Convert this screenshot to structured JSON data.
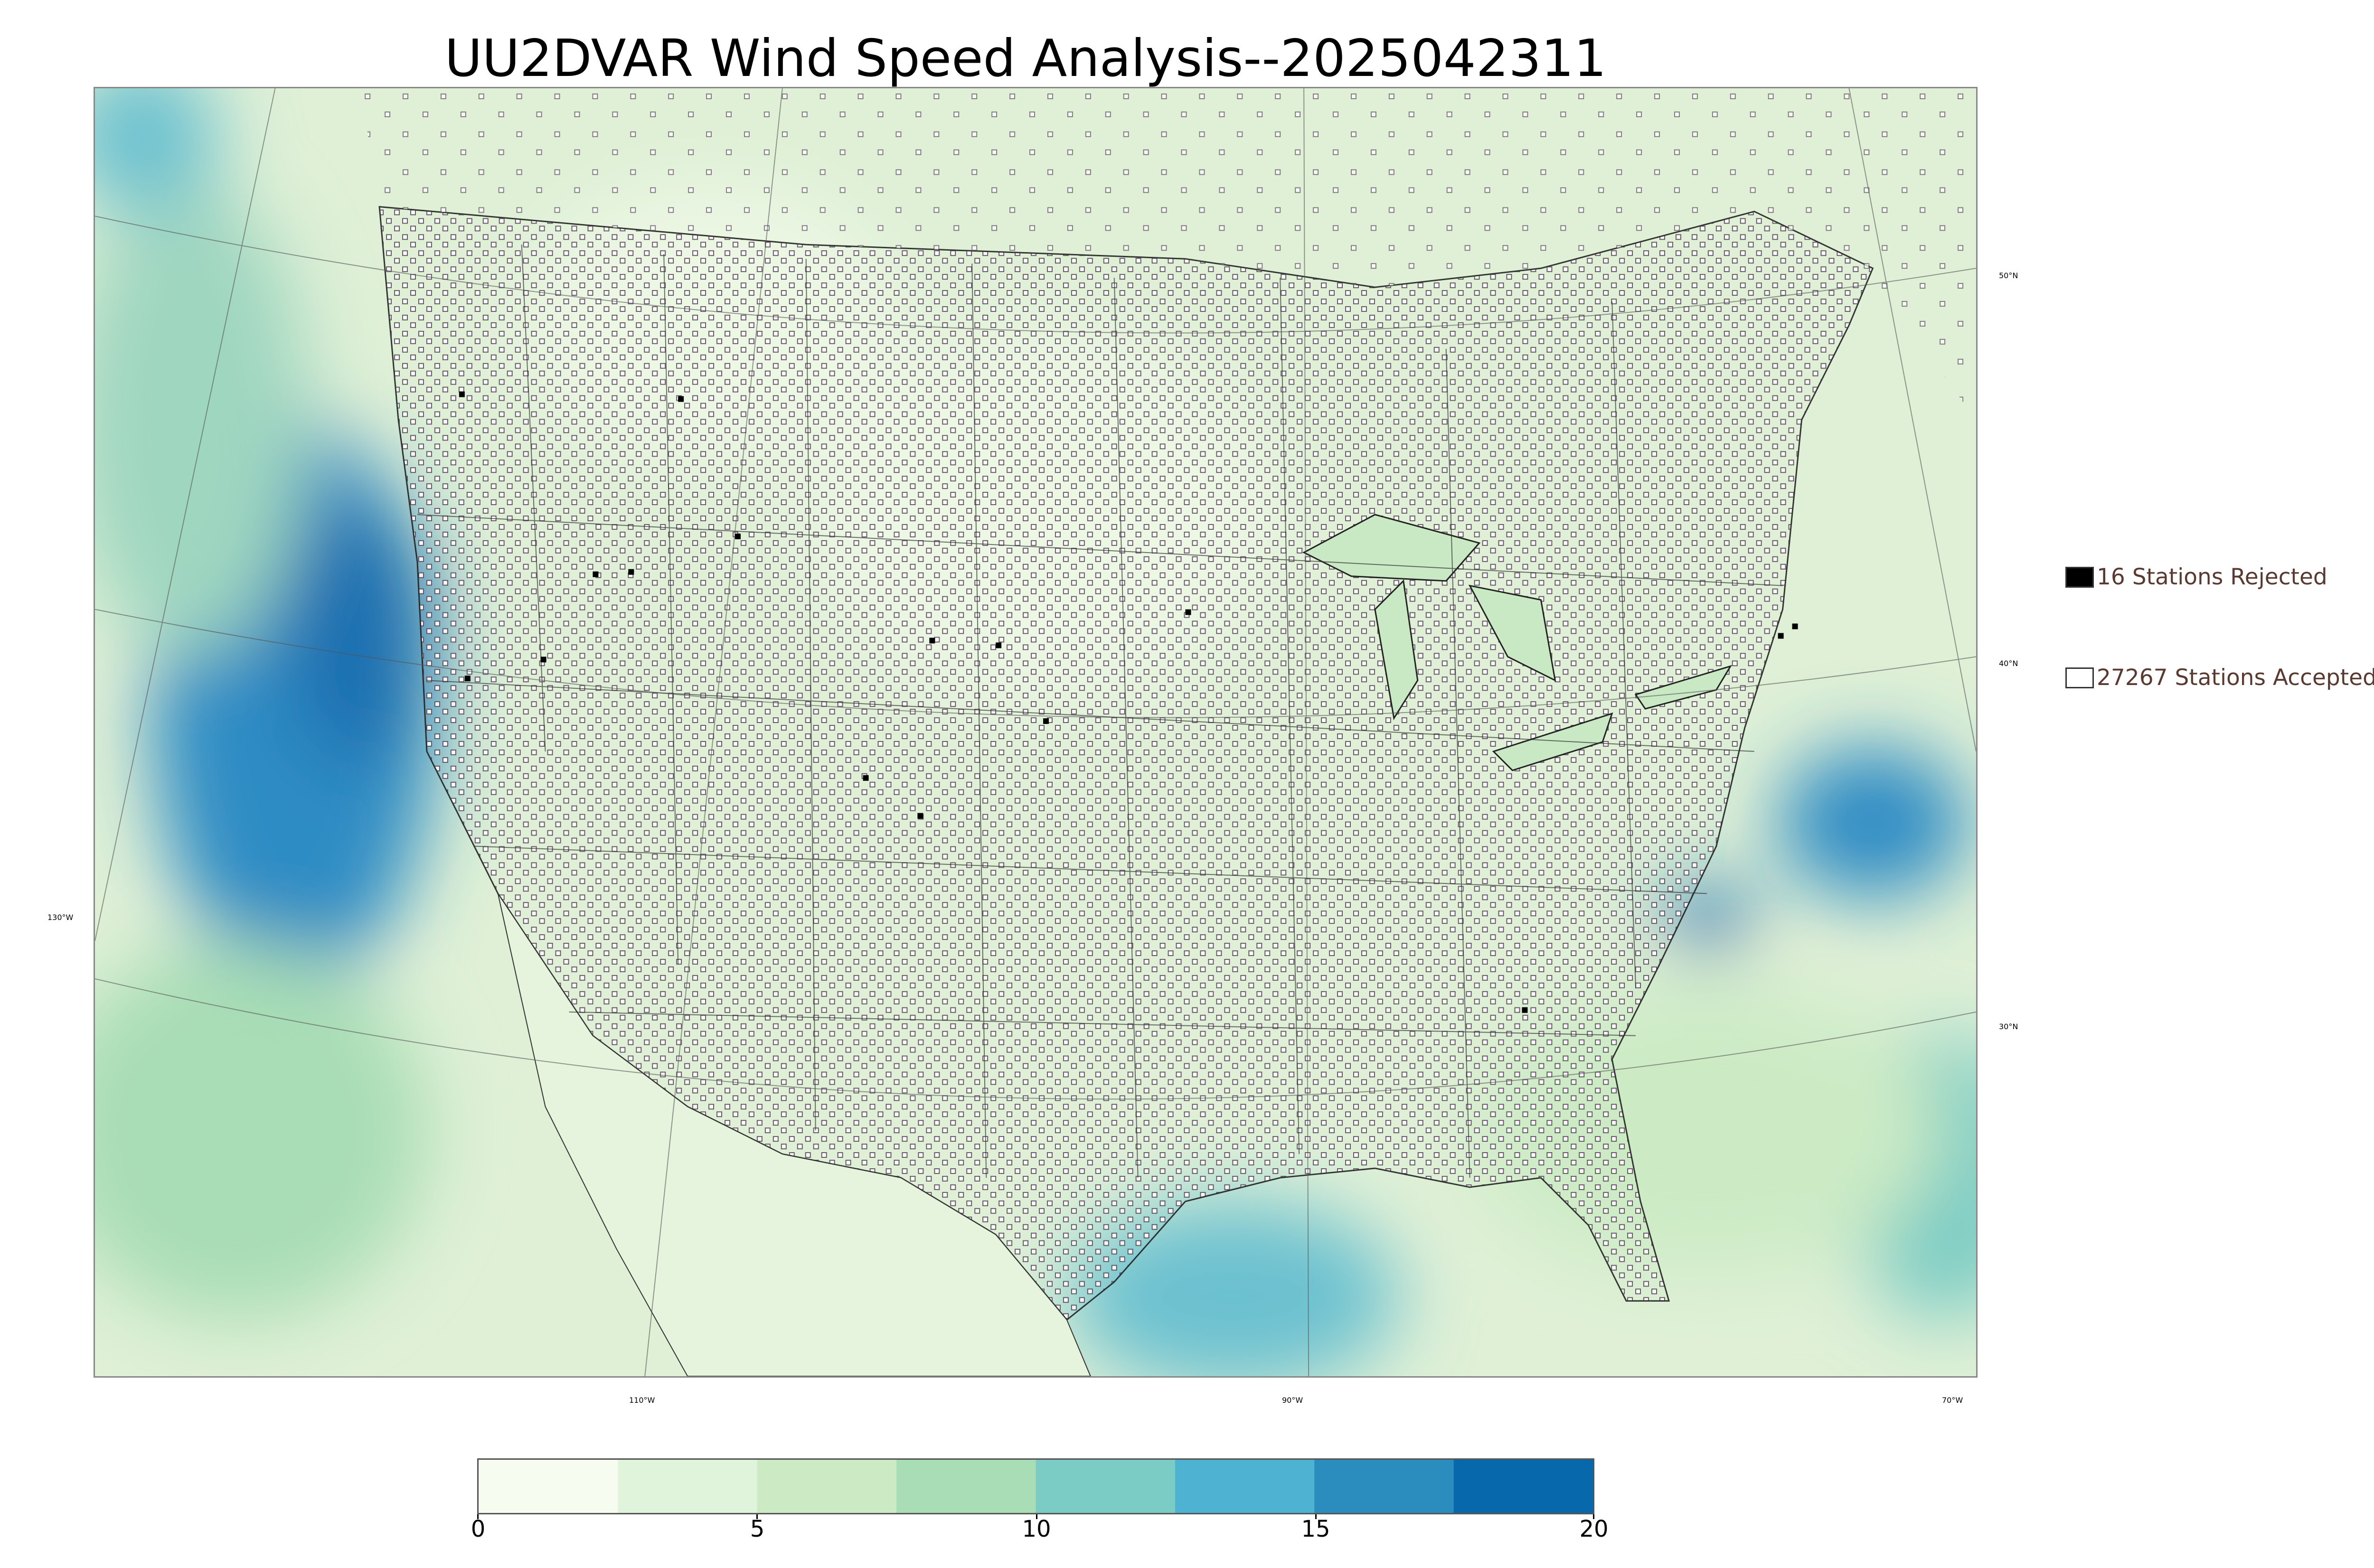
{
  "title": "UU2DVAR Wind Speed Analysis--2025042311",
  "legend": {
    "rejected": {
      "count": 16,
      "label": "16 Stations Rejected",
      "swatch_color": "#000000"
    },
    "accepted": {
      "count": 27267,
      "label": "27267 Stations Accepted",
      "swatch_color": "#ffffff"
    }
  },
  "graticule": {
    "longitude_labels": [
      "130°W",
      "110°W",
      "90°W",
      "70°W"
    ],
    "latitude_labels": [
      "50°N",
      "40°N",
      "30°N"
    ]
  },
  "colorbar": {
    "range": [
      0,
      20
    ],
    "tick_labels": [
      "0",
      "5",
      "10",
      "15",
      "20"
    ],
    "colors": [
      "#f7fcf0",
      "#e0f3db",
      "#ccebc5",
      "#a8ddb5",
      "#7bccc4",
      "#4eb3d3",
      "#2b8cbe",
      "#0868ac"
    ]
  }
}
